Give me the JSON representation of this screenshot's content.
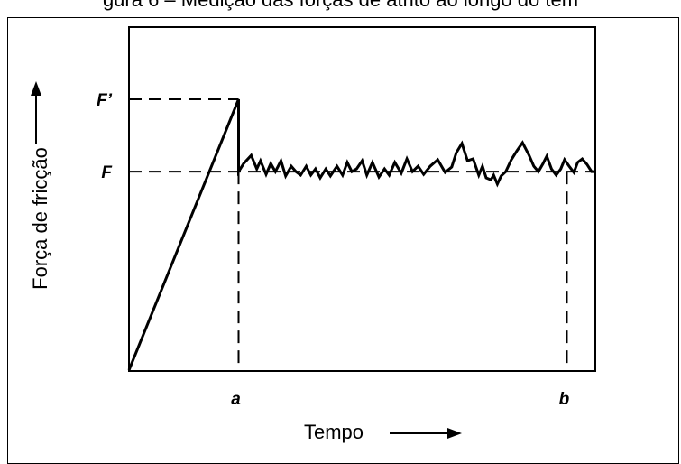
{
  "figure": {
    "caption": "gura 6 – Medição das forças de atrito ao longo do tem"
  },
  "chart_data": {
    "type": "line",
    "xlabel": "Tempo",
    "ylabel": "Força de fricção",
    "xlim": [
      0,
      100
    ],
    "ylim": [
      0,
      100
    ],
    "axis_markers": {
      "x": [
        {
          "label": "a",
          "value": 23.5
        },
        {
          "label": "b",
          "value": 93.9
        }
      ],
      "y": [
        {
          "label": "F’",
          "value": 100
        },
        {
          "label": "F",
          "value": 73.3
        }
      ]
    },
    "series": [
      {
        "points": [
          [
            0,
            0
          ],
          [
            23.5,
            100
          ],
          [
            23.5,
            73.3
          ],
          [
            24.6,
            76.3
          ],
          [
            26.2,
            79.3
          ],
          [
            27.4,
            74.3
          ],
          [
            28.2,
            77.3
          ],
          [
            29.4,
            72.3
          ],
          [
            30.4,
            76.3
          ],
          [
            31.4,
            73.3
          ],
          [
            32.6,
            77.3
          ],
          [
            33.6,
            71.7
          ],
          [
            34.8,
            75.3
          ],
          [
            35.8,
            73.3
          ],
          [
            36.8,
            72.0
          ],
          [
            38.0,
            75.3
          ],
          [
            39.0,
            72.0
          ],
          [
            40.0,
            74.3
          ],
          [
            41.0,
            71.0
          ],
          [
            42.2,
            74.3
          ],
          [
            43.2,
            71.7
          ],
          [
            44.6,
            75.3
          ],
          [
            45.8,
            72.0
          ],
          [
            46.8,
            76.7
          ],
          [
            47.8,
            73.3
          ],
          [
            48.8,
            74.3
          ],
          [
            50.0,
            77.3
          ],
          [
            51.0,
            72.0
          ],
          [
            52.2,
            76.7
          ],
          [
            53.6,
            71.3
          ],
          [
            54.8,
            74.3
          ],
          [
            55.8,
            72.0
          ],
          [
            57.0,
            76.7
          ],
          [
            58.4,
            72.7
          ],
          [
            59.6,
            78.0
          ],
          [
            60.8,
            73.3
          ],
          [
            62.0,
            75.3
          ],
          [
            63.2,
            72.3
          ],
          [
            64.6,
            75.3
          ],
          [
            66.2,
            77.7
          ],
          [
            67.8,
            73.0
          ],
          [
            69.2,
            75.0
          ],
          [
            70.2,
            80.3
          ],
          [
            71.4,
            83.7
          ],
          [
            72.6,
            77.3
          ],
          [
            73.8,
            78.0
          ],
          [
            75.0,
            72.0
          ],
          [
            75.8,
            75.3
          ],
          [
            76.6,
            71.0
          ],
          [
            77.6,
            70.3
          ],
          [
            78.2,
            72.0
          ],
          [
            79.0,
            68.7
          ],
          [
            79.8,
            71.7
          ],
          [
            80.8,
            73.3
          ],
          [
            82.0,
            77.7
          ],
          [
            83.2,
            81.0
          ],
          [
            84.4,
            84.0
          ],
          [
            85.8,
            79.3
          ],
          [
            86.8,
            75.3
          ],
          [
            87.8,
            73.3
          ],
          [
            88.8,
            76.3
          ],
          [
            89.6,
            79.0
          ],
          [
            90.6,
            74.3
          ],
          [
            91.6,
            72.0
          ],
          [
            92.6,
            74.3
          ],
          [
            93.4,
            77.7
          ],
          [
            94.4,
            75.3
          ],
          [
            95.4,
            73.0
          ],
          [
            96.2,
            76.7
          ],
          [
            97.2,
            78.0
          ],
          [
            98.2,
            76.0
          ],
          [
            99.2,
            73.3
          ],
          [
            100,
            73.3
          ]
        ]
      }
    ]
  }
}
